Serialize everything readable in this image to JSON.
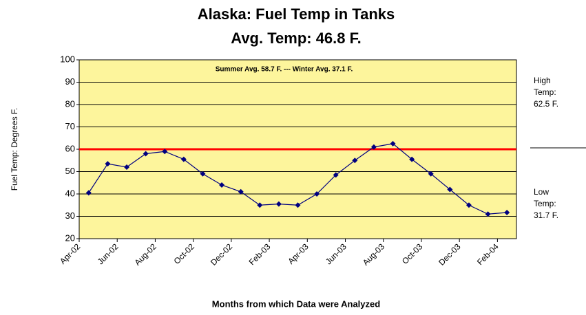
{
  "chart_data": {
    "type": "line",
    "title": "Alaska: Fuel Temp in Tanks",
    "subtitle": "Avg. Temp:  46.8 F.",
    "x_label": "Months from which Data were Analyzed",
    "y_label": "Fuel Temp: Degrees F.",
    "categories": [
      "Apr-02",
      null,
      "Jun-02",
      null,
      "Aug-02",
      null,
      "Oct-02",
      null,
      "Dec-02",
      null,
      "Feb-03",
      null,
      "Apr-03",
      null,
      "Jun-03",
      null,
      "Aug-03",
      null,
      "Oct-03",
      null,
      "Dec-03",
      null,
      "Feb-04"
    ],
    "values": [
      40.5,
      53.5,
      52,
      58,
      59,
      55.5,
      49,
      44,
      41,
      35,
      35.5,
      35,
      40,
      48.5,
      55,
      61,
      62.5,
      55.5,
      49,
      42,
      35,
      31,
      31.7
    ],
    "color": "#000080",
    "ylim": [
      20,
      100
    ],
    "yticks": [
      20,
      30,
      40,
      50,
      60,
      70,
      80,
      90,
      100
    ],
    "grid": true,
    "threshold": 60,
    "threshold_color": "#ff0000",
    "plot_background": "#fdf59c",
    "annotation": "Summer Avg.  58.7 F.   ---  Winter Avg.  37.1 F.",
    "side_notes": [
      [
        "High",
        "Temp:",
        "62.5 F."
      ],
      [
        "Low",
        "Temp:",
        "31.7 F."
      ]
    ]
  }
}
